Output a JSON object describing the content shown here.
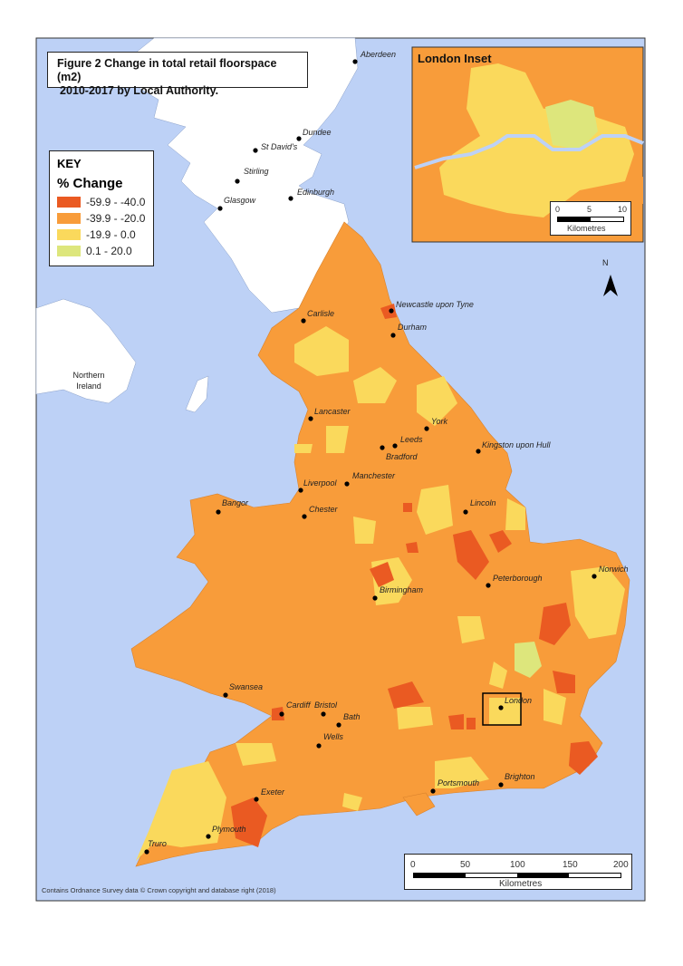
{
  "title": "Figure 2 Change in total retail floorspace (m2) 2010-2017 by Local Authority.",
  "title_line1": "Figure 2 Change in total retail floorspace (m2)",
  "title_line2": "2010-2017 by Local Authority.",
  "key": {
    "heading": "KEY",
    "subheading": "% Change",
    "items": [
      {
        "label": "-59.9 - -40.0",
        "color": "#ea5a22"
      },
      {
        "label": "-39.9 - -20.0",
        "color": "#f89c3a"
      },
      {
        "label": "-19.9 - 0.0",
        "color": "#fad95c"
      },
      {
        "label": "0.1 - 20.0",
        "color": "#dde67c"
      }
    ]
  },
  "colors": {
    "sea": "#bdd1f6",
    "land_other": "#ffffff"
  },
  "places": [
    {
      "name": "Aberdeen"
    },
    {
      "name": "Dundee"
    },
    {
      "name": "St David's"
    },
    {
      "name": "Stirling"
    },
    {
      "name": "Edinburgh"
    },
    {
      "name": "Glasgow"
    },
    {
      "name": "Northern Ireland"
    },
    {
      "name": "Newcastle upon Tyne"
    },
    {
      "name": "Carlisle"
    },
    {
      "name": "Durham"
    },
    {
      "name": "Lancaster"
    },
    {
      "name": "York"
    },
    {
      "name": "Leeds"
    },
    {
      "name": "Bradford"
    },
    {
      "name": "Kingston upon Hull"
    },
    {
      "name": "Liverpool"
    },
    {
      "name": "Manchester"
    },
    {
      "name": "Chester"
    },
    {
      "name": "Bangor"
    },
    {
      "name": "Lincoln"
    },
    {
      "name": "Birmingham"
    },
    {
      "name": "Peterborough"
    },
    {
      "name": "Norwich"
    },
    {
      "name": "Swansea"
    },
    {
      "name": "Cardiff"
    },
    {
      "name": "Bristol"
    },
    {
      "name": "Bath"
    },
    {
      "name": "Wells"
    },
    {
      "name": "London"
    },
    {
      "name": "Exeter"
    },
    {
      "name": "Portsmouth"
    },
    {
      "name": "Brighton"
    },
    {
      "name": "Plymouth"
    },
    {
      "name": "Truro"
    }
  ],
  "inset": {
    "title": "London Inset",
    "scale_ticks": [
      "0",
      "5",
      "10"
    ],
    "scale_unit": "Kilometres"
  },
  "scale": {
    "ticks": [
      "0",
      "50",
      "100",
      "150",
      "200"
    ],
    "unit": "Kilometres"
  },
  "north_arrow": "N",
  "attribution": "Contains Ordnance Survey data © Crown copyright and database right (2018)"
}
